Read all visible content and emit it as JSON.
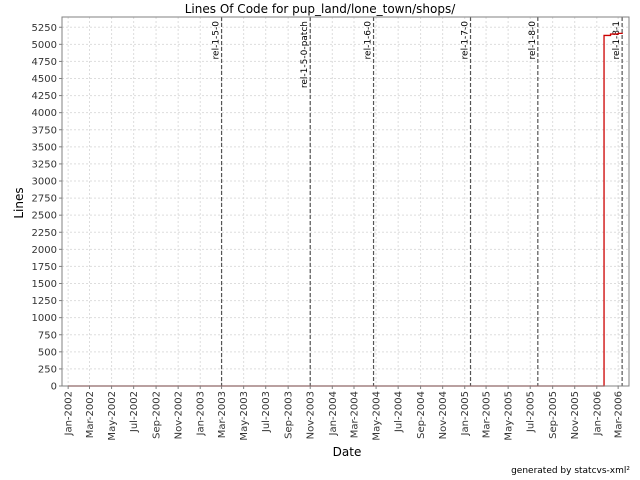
{
  "chart_data": {
    "type": "line",
    "title": "Lines Of Code for pup_land/lone_town/shops/",
    "xlabel": "Date",
    "ylabel": "Lines",
    "ylim": [
      0,
      5400
    ],
    "yticks": [
      0,
      250,
      500,
      750,
      1000,
      1250,
      1500,
      1750,
      2000,
      2250,
      2500,
      2750,
      3000,
      3250,
      3500,
      3750,
      4000,
      4250,
      4500,
      4750,
      5000,
      5250
    ],
    "xlim": [
      "2001-12-15",
      "2006-03-31"
    ],
    "xticks": [
      {
        "date": "2002-01-01",
        "label": "Jan-2002"
      },
      {
        "date": "2002-03-01",
        "label": "Mar-2002"
      },
      {
        "date": "2002-05-01",
        "label": "May-2002"
      },
      {
        "date": "2002-07-01",
        "label": "Jul-2002"
      },
      {
        "date": "2002-09-01",
        "label": "Sep-2002"
      },
      {
        "date": "2002-11-01",
        "label": "Nov-2002"
      },
      {
        "date": "2003-01-01",
        "label": "Jan-2003"
      },
      {
        "date": "2003-03-01",
        "label": "Mar-2003"
      },
      {
        "date": "2003-05-01",
        "label": "May-2003"
      },
      {
        "date": "2003-07-01",
        "label": "Jul-2003"
      },
      {
        "date": "2003-09-01",
        "label": "Sep-2003"
      },
      {
        "date": "2003-11-01",
        "label": "Nov-2003"
      },
      {
        "date": "2004-01-01",
        "label": "Jan-2004"
      },
      {
        "date": "2004-03-01",
        "label": "Mar-2004"
      },
      {
        "date": "2004-05-01",
        "label": "May-2004"
      },
      {
        "date": "2004-07-01",
        "label": "Jul-2004"
      },
      {
        "date": "2004-09-01",
        "label": "Sep-2004"
      },
      {
        "date": "2004-11-01",
        "label": "Nov-2004"
      },
      {
        "date": "2005-01-01",
        "label": "Jan-2005"
      },
      {
        "date": "2005-03-01",
        "label": "Mar-2005"
      },
      {
        "date": "2005-05-01",
        "label": "May-2005"
      },
      {
        "date": "2005-07-01",
        "label": "Jul-2005"
      },
      {
        "date": "2005-09-01",
        "label": "Sep-2005"
      },
      {
        "date": "2005-11-01",
        "label": "Nov-2005"
      },
      {
        "date": "2006-01-01",
        "label": "Jan-2006"
      },
      {
        "date": "2006-03-01",
        "label": "Mar-2006"
      }
    ],
    "series": [
      {
        "color": "#cc0000",
        "points": [
          {
            "date": "2002-01-01",
            "value": 0
          },
          {
            "date": "2006-01-20",
            "value": 0
          },
          {
            "date": "2006-01-21",
            "value": 5130
          },
          {
            "date": "2006-02-08",
            "value": 5150
          },
          {
            "date": "2006-03-01",
            "value": 5160
          },
          {
            "date": "2006-03-12",
            "value": 5170
          }
        ]
      }
    ],
    "markers": [
      {
        "date": "2003-03-01",
        "label": "rel-1-5-0"
      },
      {
        "date": "2003-11-01",
        "label": "rel-1-5-0-patch"
      },
      {
        "date": "2004-04-24",
        "label": "rel-1-6-0"
      },
      {
        "date": "2005-01-17",
        "label": "rel-1-7-0"
      },
      {
        "date": "2005-07-22",
        "label": "rel-1-8-0"
      },
      {
        "date": "2006-03-12",
        "label": "rel-1-8-1"
      }
    ],
    "grid": true,
    "colors": {
      "line": "#cc0000",
      "grid": "#dddddd",
      "marker": "#555555"
    }
  },
  "footer": "generated by statcvs-xml²"
}
